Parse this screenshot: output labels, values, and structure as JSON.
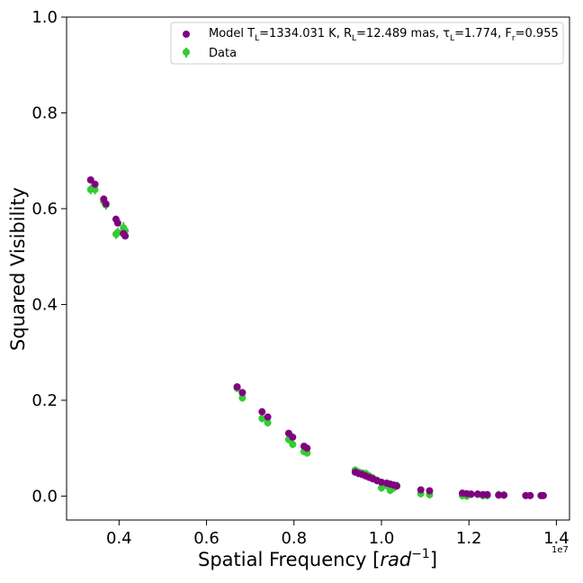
{
  "chart_data": {
    "type": "scatter",
    "xlabel_main": "Spatial Frequency ",
    "xlabel_unit": "rad",
    "xlabel_exp": "−1",
    "ylabel": "Squared Visibility",
    "x_offset_label": "1e7",
    "x_scale": 10000000,
    "xlim": [
      0.28,
      1.43
    ],
    "ylim": [
      -0.05,
      1.0
    ],
    "xticks": [
      0.4,
      0.6,
      0.8,
      1.0,
      1.2,
      1.4
    ],
    "xtick_labels": [
      "0.4",
      "0.6",
      "0.8",
      "1.0",
      "1.2",
      "1.4"
    ],
    "yticks": [
      0.0,
      0.2,
      0.4,
      0.6,
      0.8,
      1.0
    ],
    "ytick_labels": [
      "0.0",
      "0.2",
      "0.4",
      "0.6",
      "0.8",
      "1.0"
    ],
    "grid": false,
    "legend_position": "top-right",
    "colors": {
      "model": "#800080",
      "data": "#33cc33"
    },
    "legend": {
      "model_label_parts": [
        "Model T",
        "L",
        "=1334.031 K, R",
        "L",
        "=12.489 mas, τ",
        "L",
        "=1.774, F",
        "r",
        "=0.955"
      ],
      "data_label": "Data"
    },
    "series": [
      {
        "name": "Model",
        "marker": "circle",
        "x": [
          0.335,
          0.345,
          0.365,
          0.37,
          0.393,
          0.397,
          0.41,
          0.414,
          0.67,
          0.682,
          0.727,
          0.74,
          0.788,
          0.797,
          0.823,
          0.83,
          0.94,
          0.948,
          0.956,
          0.964,
          0.972,
          0.98,
          0.99,
          1.0,
          1.012,
          1.02,
          1.028,
          1.035,
          1.09,
          1.11,
          1.185,
          1.195,
          1.205,
          1.22,
          1.232,
          1.242,
          1.268,
          1.28,
          1.33,
          1.34,
          1.365,
          1.37
        ],
        "y": [
          0.66,
          0.651,
          0.62,
          0.61,
          0.578,
          0.57,
          0.548,
          0.543,
          0.228,
          0.216,
          0.176,
          0.165,
          0.131,
          0.123,
          0.104,
          0.1,
          0.05,
          0.047,
          0.045,
          0.042,
          0.039,
          0.036,
          0.032,
          0.029,
          0.027,
          0.025,
          0.023,
          0.021,
          0.013,
          0.011,
          0.006,
          0.005,
          0.004,
          0.004,
          0.003,
          0.003,
          0.002,
          0.002,
          0.001,
          0.001,
          0.001,
          0.001
        ]
      },
      {
        "name": "Data",
        "marker": "circle",
        "x": [
          0.335,
          0.345,
          0.365,
          0.37,
          0.393,
          0.397,
          0.41,
          0.414,
          0.67,
          0.682,
          0.727,
          0.74,
          0.788,
          0.797,
          0.823,
          0.83,
          0.94,
          0.948,
          0.956,
          0.964,
          0.972,
          0.98,
          0.99,
          1.0,
          1.012,
          1.02,
          1.028,
          1.035,
          1.09,
          1.11,
          1.185,
          1.195,
          1.205,
          1.22,
          1.232,
          1.242,
          1.268,
          1.28,
          1.33,
          1.34,
          1.365,
          1.37
        ],
        "y": [
          0.64,
          0.64,
          0.615,
          0.608,
          0.547,
          0.55,
          0.56,
          0.554,
          0.225,
          0.205,
          0.162,
          0.153,
          0.118,
          0.108,
          0.093,
          0.09,
          0.054,
          0.05,
          0.048,
          0.047,
          0.042,
          0.038,
          0.033,
          0.017,
          0.022,
          0.012,
          0.017,
          0.022,
          0.005,
          0.003,
          0.001,
          0.0,
          0.004,
          0.004,
          0.001,
          0.001,
          0.003,
          0.002,
          0.001,
          0.001,
          0.001,
          0.001
        ],
        "yerr": [
          0.01,
          0.01,
          0.012,
          0.01,
          0.01,
          0.01,
          0.012,
          0.012,
          0.008,
          0.008,
          0.008,
          0.008,
          0.008,
          0.008,
          0.008,
          0.008,
          0.008,
          0.008,
          0.008,
          0.008,
          0.008,
          0.008,
          0.008,
          0.008,
          0.008,
          0.008,
          0.008,
          0.008,
          0.008,
          0.008,
          0.008,
          0.008,
          0.008,
          0.008,
          0.008,
          0.008,
          0.008,
          0.008,
          0.006,
          0.006,
          0.006,
          0.006
        ]
      }
    ]
  }
}
